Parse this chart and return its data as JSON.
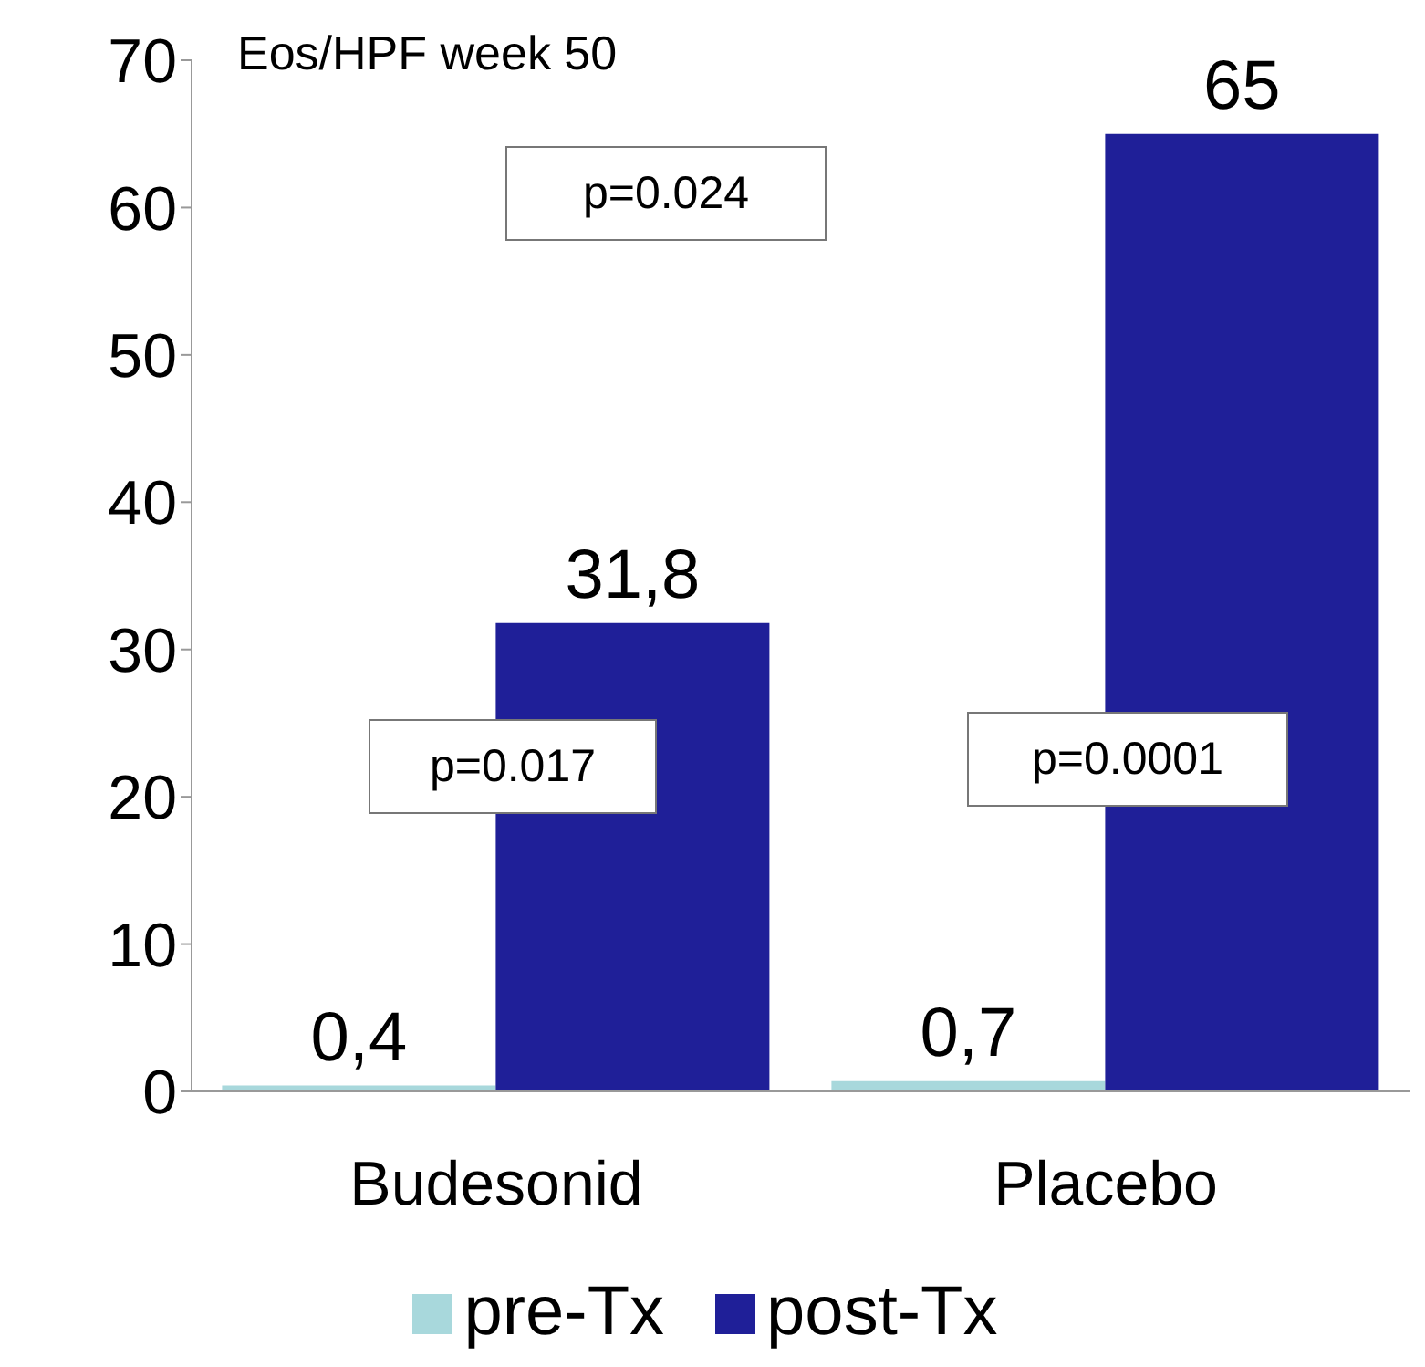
{
  "chart_data": {
    "type": "bar",
    "title": "Eos/HPF week 50",
    "categories": [
      "Budesonid",
      "Placebo"
    ],
    "series": [
      {
        "name": "pre-Tx",
        "color": "#a8d8dc",
        "values": [
          0.4,
          0.7
        ],
        "value_labels": [
          "0,4",
          "0,7"
        ]
      },
      {
        "name": "post-Tx",
        "color": "#1f1f98",
        "values": [
          31.8,
          65
        ],
        "value_labels": [
          "31,8",
          "65"
        ]
      }
    ],
    "annotations": [
      "p=0.017",
      "p=0.0001",
      "p=0.024"
    ],
    "ylim": [
      0,
      70
    ],
    "yticks": [
      0,
      10,
      20,
      30,
      40,
      50,
      60,
      70
    ],
    "grid": false,
    "legend": "bottom"
  }
}
